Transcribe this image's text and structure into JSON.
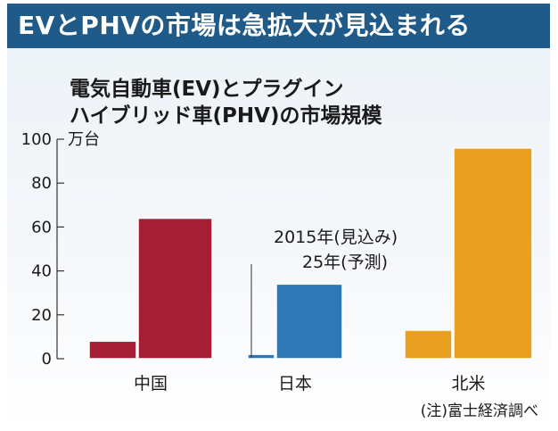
{
  "header": {
    "title": "EVとPHVの市場は急拡大が見込まれる"
  },
  "chart": {
    "title_line1": "電気自動車(EV)とプラグイン",
    "title_line2": "ハイブリッド車(PHV)の市場規模",
    "unit": "万台",
    "legend_2015": "2015年(見込み)",
    "legend_2025": "25年(予測)",
    "source_note": "(注)富士経済調べ"
  },
  "colors": {
    "header_bg": "#1f5a88",
    "china": "#a51e35",
    "japan": "#2f78b7",
    "north_america": "#e9a020"
  },
  "chart_data": {
    "type": "bar",
    "categories": [
      "中国",
      "日本",
      "北米"
    ],
    "series": [
      {
        "name": "2015年(見込み)",
        "values": [
          8,
          2,
          13
        ]
      },
      {
        "name": "25年(予測)",
        "values": [
          64,
          34,
          96
        ]
      }
    ],
    "ylabel": "万台",
    "ylim": [
      0,
      100
    ],
    "yticks": [
      0,
      20,
      40,
      60,
      80,
      100
    ],
    "grid": false
  }
}
